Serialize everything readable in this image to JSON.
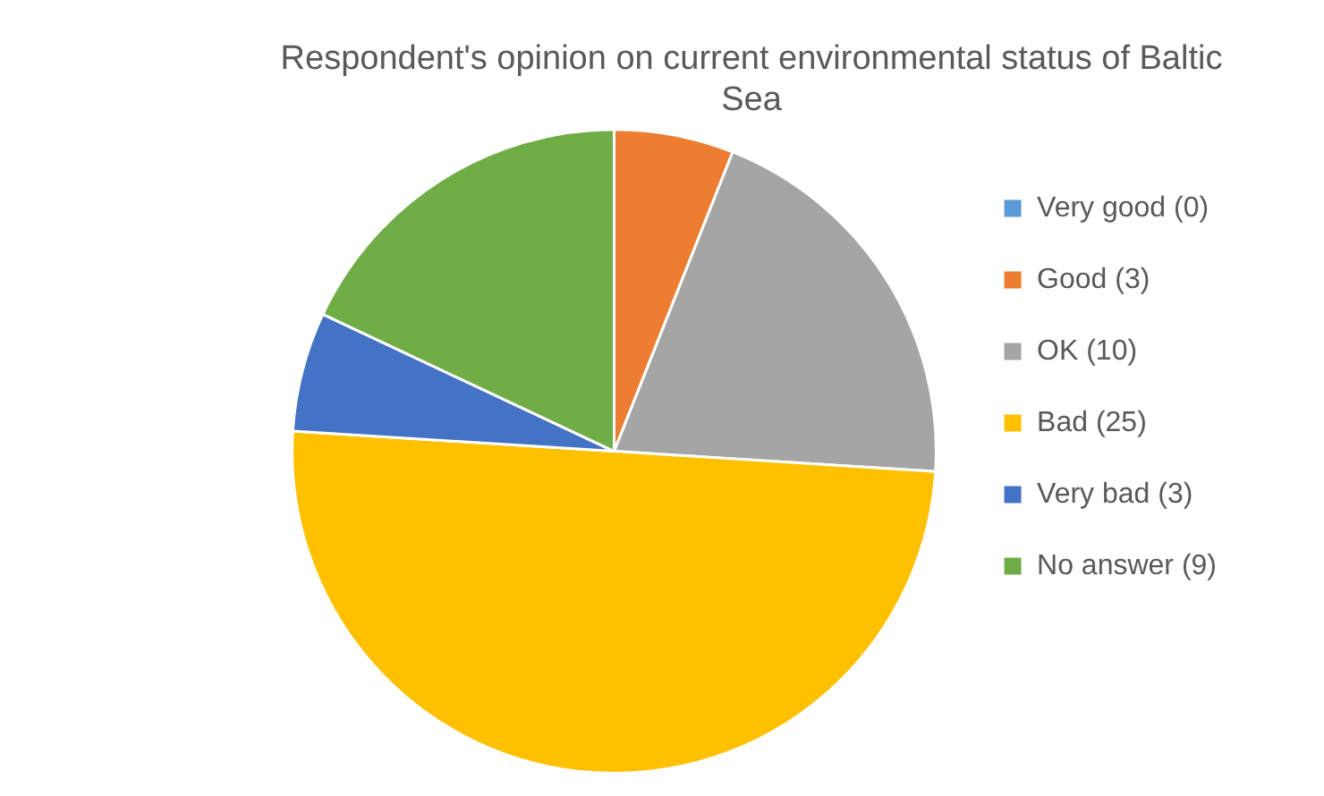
{
  "chart_data": {
    "type": "pie",
    "title": "Respondent's opinion on current environmental status of Baltic Sea",
    "categories": [
      "Very good (0)",
      "Good (3)",
      "OK (10)",
      "Bad (25)",
      "Very bad (3)",
      "No answer (9)"
    ],
    "values": [
      0,
      3,
      10,
      25,
      3,
      9
    ],
    "colors": [
      "#5b9bd5",
      "#ed7d31",
      "#a5a5a5",
      "#ffc000",
      "#4472c4",
      "#70ad47"
    ],
    "legend": "right"
  }
}
